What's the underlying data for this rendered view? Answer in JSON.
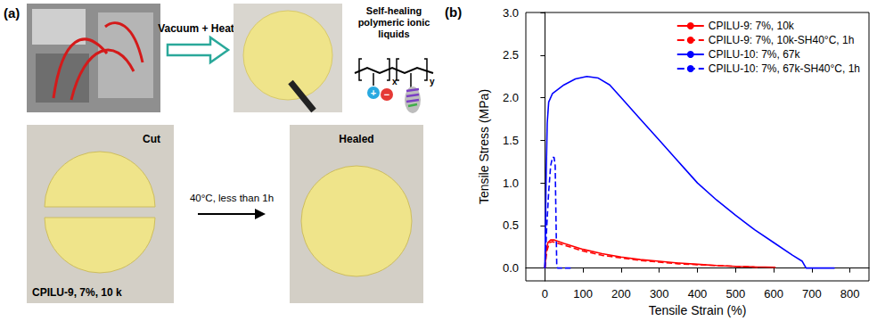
{
  "panel_a": {
    "letter": "(a)",
    "arrow_top": "Vacuum + Heat",
    "polymer_title": "Self-healing polymeric ionic liquids",
    "polymer_subscripts": [
      "x",
      "y"
    ],
    "ion_charges": [
      "+",
      "−"
    ],
    "cut_label": "Cut",
    "sample_label": "CPILU-9, 7%, 10 k",
    "healing_condition": "40°C, less than 1h",
    "healed_label": "Healed"
  },
  "chart_data": {
    "letter": "(b)",
    "type": "line",
    "x_label": "Tensile Strain (%)",
    "y_label": "Tensile Stress (MPa)",
    "xlim": [
      -50,
      850
    ],
    "xticks": [
      0,
      100,
      200,
      300,
      400,
      500,
      600,
      700,
      800
    ],
    "ylim": [
      -0.15,
      3.0
    ],
    "yticks": [
      {
        "value": 0,
        "label": "0.0"
      },
      {
        "value": 0.5,
        "label": "0.5"
      },
      {
        "value": 1,
        "label": "1.0"
      },
      {
        "value": 1.5,
        "label": "1.5"
      },
      {
        "value": 2,
        "label": "2.0"
      },
      {
        "value": 2.5,
        "label": "2.5"
      },
      {
        "value": 3,
        "label": "3.0"
      }
    ],
    "grid": false,
    "legend": "upper right",
    "series": [
      {
        "name": "CPILU-9: 7%, 10k",
        "color": "#ff0000",
        "line_style": "solid",
        "x": [
          0,
          3,
          8,
          15,
          25,
          50,
          100,
          150,
          200,
          250,
          300,
          350,
          400,
          450,
          500,
          550,
          605
        ],
        "values": [
          0,
          0.2,
          0.3,
          0.33,
          0.33,
          0.29,
          0.22,
          0.17,
          0.13,
          0.1,
          0.08,
          0.06,
          0.045,
          0.03,
          0.02,
          0.015,
          0.01
        ]
      },
      {
        "name": "CPILU-9: 7%, 10k-SH40°C, 1h",
        "color": "#ff0000",
        "line_style": "dashed",
        "x": [
          0,
          5,
          12,
          20,
          50,
          100,
          150,
          200,
          250,
          300,
          350,
          400,
          450,
          500,
          560
        ],
        "values": [
          0,
          0.2,
          0.3,
          0.31,
          0.27,
          0.2,
          0.15,
          0.12,
          0.09,
          0.07,
          0.05,
          0.04,
          0.03,
          0.02,
          0.01
        ]
      },
      {
        "name": "CPILU-10: 7%, 67k",
        "color": "#0000ff",
        "line_style": "solid",
        "x": [
          0,
          3,
          6,
          10,
          20,
          50,
          80,
          110,
          140,
          170,
          200,
          250,
          300,
          350,
          400,
          450,
          500,
          550,
          600,
          650,
          675,
          685,
          760
        ],
        "values": [
          0,
          1.0,
          1.7,
          1.95,
          2.05,
          2.15,
          2.22,
          2.25,
          2.23,
          2.15,
          2.0,
          1.75,
          1.5,
          1.25,
          1.0,
          0.8,
          0.62,
          0.45,
          0.3,
          0.15,
          0.08,
          0,
          0
        ]
      },
      {
        "name": "CPILU-10: 7%, 67k-SH40°C, 1h",
        "color": "#0000ff",
        "line_style": "dashed",
        "x": [
          0,
          5,
          10,
          15,
          20,
          24,
          27,
          29,
          31,
          33,
          70
        ],
        "values": [
          0,
          0.5,
          0.9,
          1.2,
          1.3,
          1.3,
          1.2,
          0.6,
          0.05,
          0,
          0
        ]
      }
    ]
  }
}
